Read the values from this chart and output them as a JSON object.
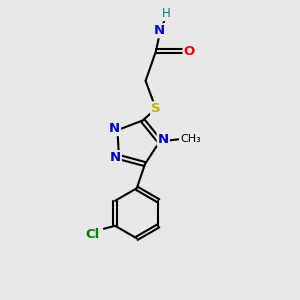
{
  "bg_color": "#e8e8e8",
  "colors": {
    "C": "#000000",
    "N": "#0000cc",
    "O": "#ff0000",
    "S": "#b8b800",
    "Cl": "#008000",
    "H": "#008080",
    "bond": "#000000"
  },
  "figsize": [
    3.0,
    3.0
  ],
  "dpi": 100
}
